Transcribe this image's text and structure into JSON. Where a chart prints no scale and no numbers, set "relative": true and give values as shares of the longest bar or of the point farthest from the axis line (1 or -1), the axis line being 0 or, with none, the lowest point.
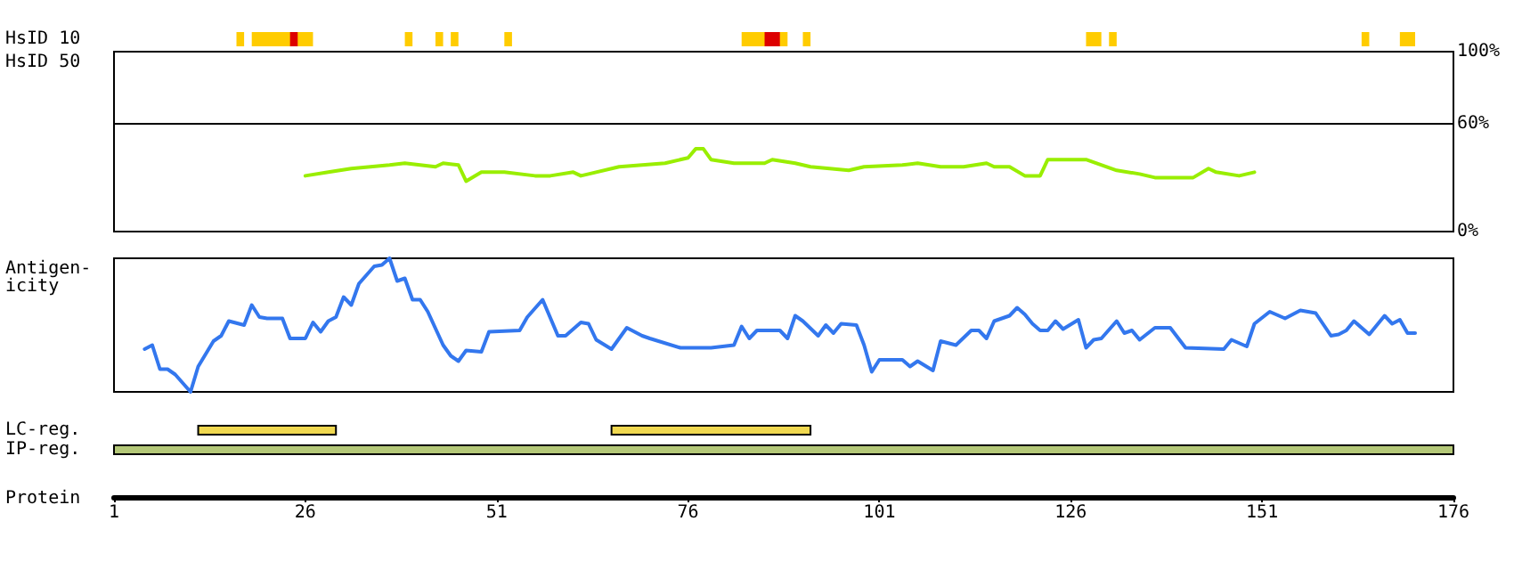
{
  "chart_data": [
    {
      "type": "bar",
      "orientation": "horizontal",
      "categories": [
        "HsID 10"
      ],
      "xlim": [
        1,
        176
      ],
      "tick_labels": "y",
      "series": [
        {
          "color": "#ffcc00",
          "values": [
            1
          ],
          "base": [
            17
          ]
        },
        {
          "color": "#ffcc00",
          "values": [
            8
          ],
          "base": [
            19
          ]
        },
        {
          "color": "#ffcc00",
          "values": [
            1
          ],
          "base": [
            39
          ]
        },
        {
          "color": "#ffcc00",
          "values": [
            1
          ],
          "base": [
            43
          ]
        },
        {
          "color": "#ffcc00",
          "values": [
            1
          ],
          "base": [
            45
          ]
        },
        {
          "color": "#ffcc00",
          "values": [
            1
          ],
          "base": [
            52
          ]
        },
        {
          "color": "#ffcc00",
          "values": [
            6
          ],
          "base": [
            83
          ]
        },
        {
          "color": "#ffcc00",
          "values": [
            1
          ],
          "base": [
            91
          ]
        },
        {
          "color": "#ffcc00",
          "values": [
            2
          ],
          "base": [
            128
          ]
        },
        {
          "color": "#ffcc00",
          "values": [
            1
          ],
          "base": [
            131
          ]
        },
        {
          "color": "#ffcc00",
          "values": [
            1
          ],
          "base": [
            164
          ]
        },
        {
          "color": "#ffcc00",
          "values": [
            2
          ],
          "base": [
            169
          ]
        },
        {
          "color": "#dd0000",
          "values": [
            1
          ],
          "base": [
            24
          ]
        },
        {
          "color": "#dd0000",
          "values": [
            2
          ],
          "base": [
            86
          ]
        }
      ]
    },
    {
      "type": "line",
      "ylabel": "HsID 50",
      "xlim": [
        1,
        176
      ],
      "ylim": [
        0,
        100
      ],
      "yticks": [
        {
          "value": 0,
          "label": "0%"
        },
        {
          "value": 60,
          "label": "60%"
        },
        {
          "value": 100,
          "label": "100%"
        }
      ],
      "tick_labels": "y",
      "marker": "none",
      "ref_lines": [
        {
          "axis": "y",
          "value": 60,
          "color": "#000000"
        }
      ],
      "x": [
        26,
        29,
        32,
        37,
        39,
        43,
        44,
        46,
        47,
        49,
        52,
        56,
        58,
        61,
        62,
        63,
        67,
        73,
        76,
        77,
        78,
        79,
        82,
        86,
        87,
        90,
        92,
        97,
        99,
        104,
        106,
        109,
        112,
        115,
        116,
        118,
        120,
        122,
        123,
        128,
        132,
        135,
        137,
        142,
        144,
        145,
        148,
        150
      ],
      "series": [
        {
          "color": "#99ee00",
          "values": [
            31,
            33,
            35,
            37,
            38,
            36,
            38,
            37,
            28,
            33,
            33,
            31,
            31,
            33,
            31,
            32,
            36,
            38,
            41,
            46,
            46,
            40,
            38,
            38,
            40,
            38,
            36,
            34,
            36,
            37,
            38,
            36,
            36,
            38,
            36,
            36,
            31,
            31,
            40,
            40,
            34,
            32,
            30,
            30,
            35,
            33,
            31,
            33
          ]
        }
      ]
    },
    {
      "type": "line",
      "ylabel": "Antigen-\nicity",
      "xlim": [
        1,
        176
      ],
      "relative": true,
      "tick_labels": false,
      "marker": "none",
      "x": [
        5,
        6,
        7,
        8,
        9,
        11,
        12,
        14,
        15,
        16,
        18,
        19,
        20,
        21,
        23,
        24,
        26,
        27,
        28,
        29,
        30,
        31,
        32,
        33,
        35,
        36,
        37,
        38,
        39,
        40,
        41,
        42,
        44,
        45,
        46,
        47,
        49,
        50,
        54,
        55,
        57,
        59,
        60,
        62,
        63,
        64,
        66,
        68,
        70,
        71,
        75,
        79,
        82,
        83,
        84,
        85,
        88,
        89,
        90,
        91,
        93,
        94,
        95,
        96,
        98,
        99,
        100,
        101,
        104,
        105,
        106,
        108,
        109,
        111,
        113,
        114,
        115,
        116,
        118,
        119,
        120,
        121,
        122,
        123,
        124,
        125,
        127,
        128,
        129,
        130,
        132,
        133,
        134,
        135,
        137,
        139,
        141,
        146,
        147,
        149,
        150,
        152,
        154,
        156,
        158,
        160,
        161,
        162,
        163,
        165,
        167,
        168,
        169,
        170,
        171
      ],
      "series": [
        {
          "color": "#3377ee",
          "values": [
            0.32,
            0.35,
            0.17,
            0.17,
            0.13,
            0,
            0.19,
            0.38,
            0.42,
            0.53,
            0.5,
            0.65,
            0.56,
            0.55,
            0.55,
            0.4,
            0.4,
            0.52,
            0.45,
            0.53,
            0.56,
            0.71,
            0.65,
            0.81,
            0.94,
            0.95,
            1,
            0.83,
            0.85,
            0.69,
            0.69,
            0.6,
            0.35,
            0.27,
            0.23,
            0.31,
            0.3,
            0.45,
            0.46,
            0.56,
            0.69,
            0.42,
            0.42,
            0.52,
            0.51,
            0.39,
            0.32,
            0.48,
            0.42,
            0.4,
            0.33,
            0.33,
            0.35,
            0.49,
            0.4,
            0.46,
            0.46,
            0.4,
            0.57,
            0.53,
            0.42,
            0.5,
            0.44,
            0.51,
            0.5,
            0.35,
            0.15,
            0.24,
            0.24,
            0.19,
            0.23,
            0.16,
            0.38,
            0.35,
            0.46,
            0.46,
            0.4,
            0.53,
            0.57,
            0.63,
            0.58,
            0.51,
            0.46,
            0.46,
            0.53,
            0.47,
            0.54,
            0.33,
            0.39,
            0.4,
            0.53,
            0.44,
            0.46,
            0.39,
            0.48,
            0.48,
            0.33,
            0.32,
            0.39,
            0.34,
            0.51,
            0.6,
            0.55,
            0.61,
            0.59,
            0.42,
            0.43,
            0.46,
            0.53,
            0.43,
            0.57,
            0.51,
            0.54,
            0.44,
            0.44
          ]
        }
      ]
    },
    {
      "type": "bar",
      "orientation": "horizontal",
      "categories": [
        "LC-reg.",
        "IP-reg."
      ],
      "xlabel": "Protein",
      "xlim": [
        1,
        176
      ],
      "xticks": [
        1,
        26,
        51,
        76,
        101,
        126,
        151,
        176
      ],
      "series": [
        {
          "colors": [
            "#f0d850",
            "#b4c878"
          ],
          "values": [
            18,
            175
          ],
          "base": [
            12,
            1
          ]
        },
        {
          "color": "#f0d850",
          "values": [
            26,
            null
          ],
          "base": [
            66,
            null
          ]
        }
      ]
    }
  ]
}
